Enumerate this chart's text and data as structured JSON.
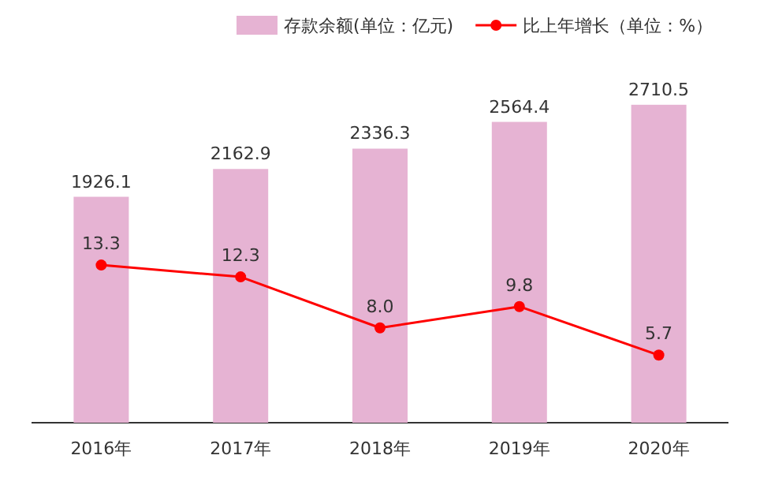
{
  "chart_data": {
    "type": "bar",
    "categories": [
      "2016年",
      "2017年",
      "2018年",
      "2019年",
      "2020年"
    ],
    "series": [
      {
        "name": "存款余额(单位：亿元)",
        "color": "#e6b3d3",
        "values": [
          1926.1,
          2162.9,
          2336.3,
          2564.4,
          2710.5
        ]
      },
      {
        "name": "比上年增长（单位：%）",
        "type": "line",
        "axis": "y2",
        "color": "#ff0000",
        "values": [
          13.3,
          12.3,
          8.0,
          9.8,
          5.7
        ],
        "value_labels": [
          "13.3",
          "12.3",
          "8.0",
          "9.8",
          "5.7"
        ]
      }
    ],
    "data_labels": true,
    "legend": "top",
    "marker": "circle"
  }
}
